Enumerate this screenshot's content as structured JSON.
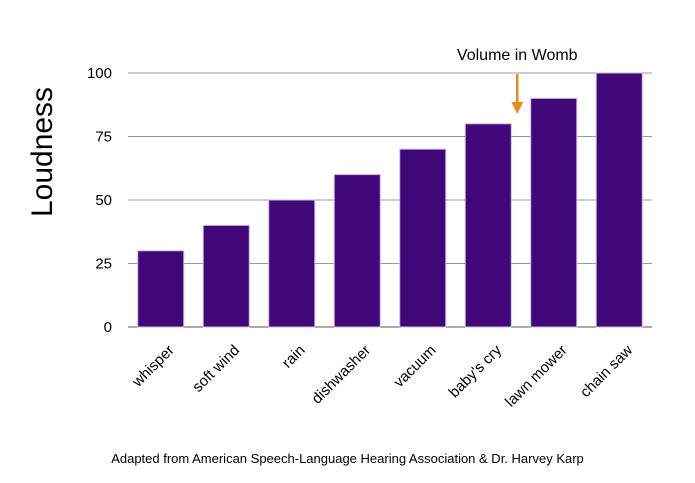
{
  "chart_data": {
    "type": "bar",
    "categories": [
      "whisper",
      "soft wind",
      "rain",
      "dishwasher",
      "vacuum",
      "baby's cry",
      "lawn mower",
      "chain saw"
    ],
    "values": [
      30,
      40,
      50,
      60,
      70,
      80,
      90,
      100
    ],
    "ylabel": "Loudness",
    "ylim": [
      0,
      100
    ],
    "yticks": [
      0,
      25,
      50,
      75,
      100
    ],
    "grid": true,
    "bar_color": "#3f0778",
    "annotation": {
      "text": "Volume in Womb",
      "category": "baby's cry",
      "arrow_color": "#e98a1c"
    }
  },
  "source_text": "Adapted from American Speech-Language Hearing Association & Dr. Harvey Karp"
}
